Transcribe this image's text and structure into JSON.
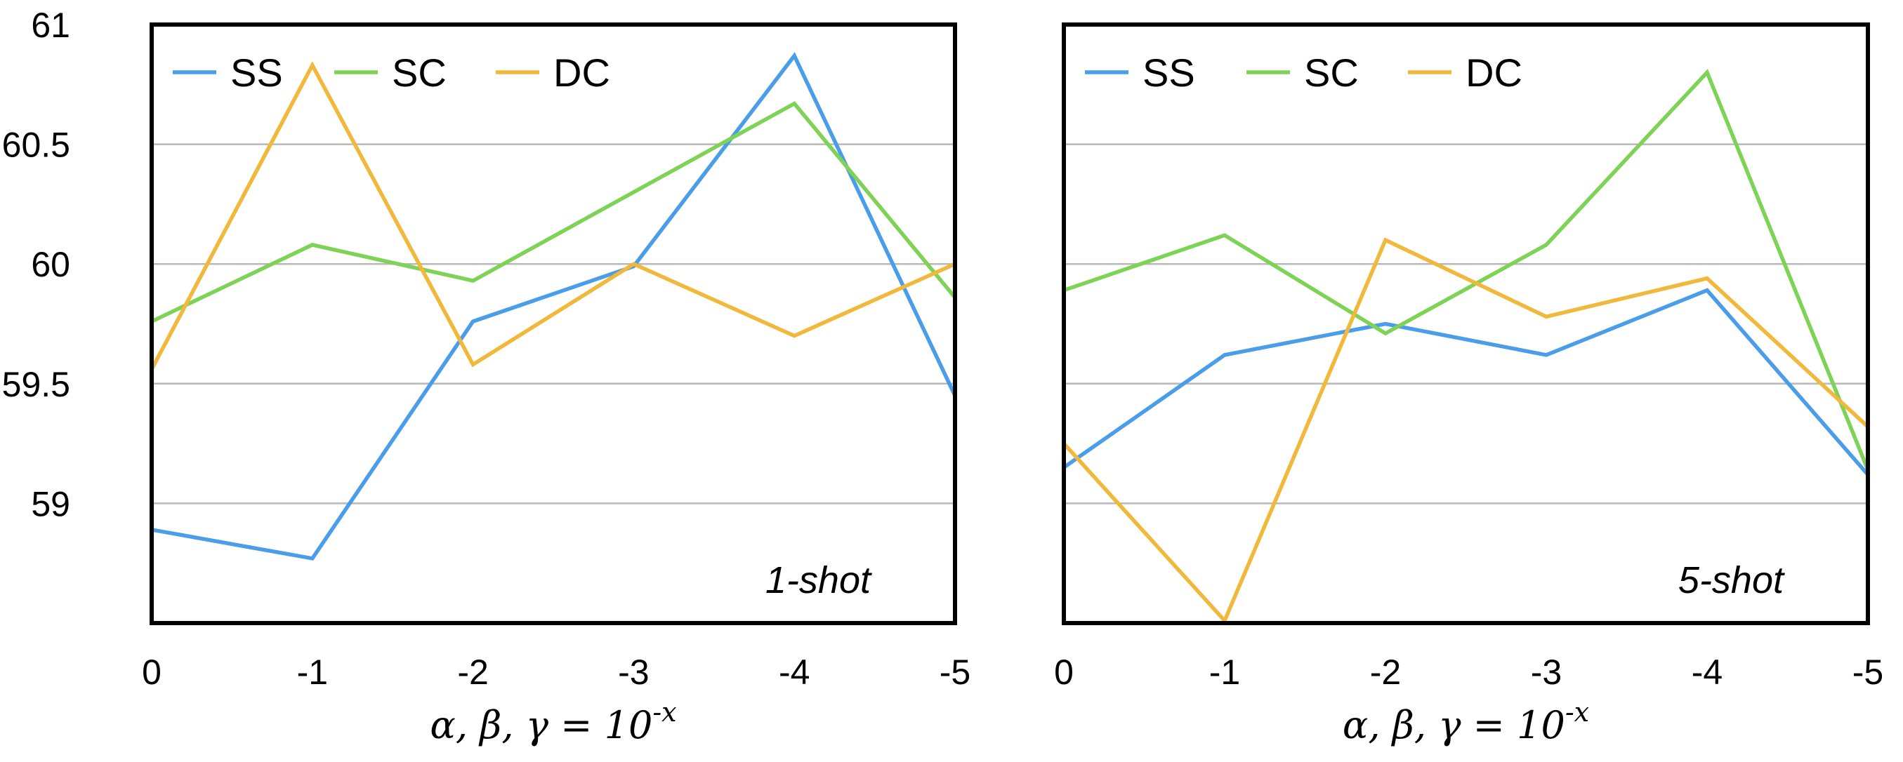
{
  "colors": {
    "SS": "#4a9de8",
    "SC": "#7ed357",
    "DC": "#f0b93b",
    "grid": "#b8b8b8",
    "frame": "#000000"
  },
  "chart_data": [
    {
      "type": "line",
      "categories": [
        "0",
        "-1",
        "-2",
        "-3",
        "-4",
        "-5"
      ],
      "ylim": [
        58.5,
        61
      ],
      "yticks": [
        61,
        60.5,
        60,
        59.5,
        59
      ],
      "ytick_labels": [
        "61",
        "60.5",
        "60",
        "59.5",
        "59"
      ],
      "grid": "horizontal",
      "legend": "top-left",
      "xlabel": "α, β, γ = 10",
      "xlabel_sup": "-x",
      "annotation": "1-shot",
      "series": [
        {
          "name": "SS",
          "values": [
            58.89,
            58.77,
            59.76,
            59.99,
            60.87,
            59.45
          ]
        },
        {
          "name": "SC",
          "values": [
            59.76,
            60.08,
            59.93,
            60.3,
            60.67,
            59.86
          ]
        },
        {
          "name": "DC",
          "values": [
            59.56,
            60.83,
            59.58,
            60.0,
            59.7,
            60.0
          ]
        }
      ]
    },
    {
      "type": "line",
      "categories": [
        "0",
        "-1",
        "-2",
        "-3",
        "-4",
        "-5"
      ],
      "ylim": [
        58.5,
        61
      ],
      "yticks": [
        61,
        60.5,
        60,
        59.5,
        59
      ],
      "ytick_labels": [],
      "grid": "horizontal",
      "legend": "top-left",
      "xlabel": "α, β, γ = 10",
      "xlabel_sup": "-x",
      "annotation": "5-shot",
      "series": [
        {
          "name": "SS",
          "values": [
            59.15,
            59.62,
            59.75,
            59.62,
            59.89,
            59.12
          ]
        },
        {
          "name": "SC",
          "values": [
            59.89,
            60.12,
            59.71,
            60.08,
            60.8,
            59.14
          ]
        },
        {
          "name": "DC",
          "values": [
            59.25,
            58.51,
            60.1,
            59.78,
            59.94,
            59.32
          ]
        }
      ]
    }
  ]
}
